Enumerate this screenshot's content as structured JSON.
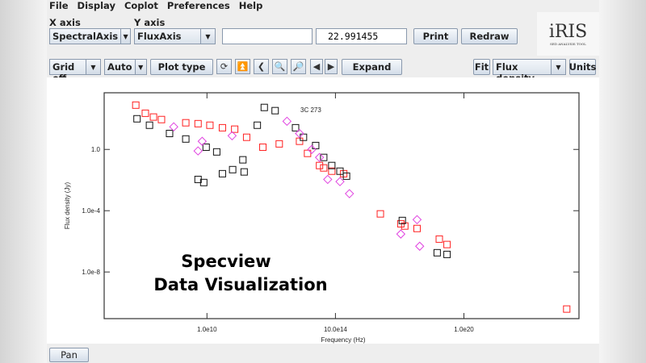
{
  "menu": [
    "File",
    "Display",
    "Coplot",
    "Preferences",
    "Help"
  ],
  "toolbar1": {
    "x_axis_label": "X axis",
    "x_axis_value": "SpectralAxis",
    "y_axis_label": "Y axis",
    "y_axis_value": "FluxAxis",
    "blank_field": "",
    "coord_value": "22.991455",
    "print": "Print",
    "redraw": "Redraw"
  },
  "logo": {
    "text": "iRIS",
    "subtitle": "SED ANALYSIS TOOL"
  },
  "toolbar2": {
    "grid": "Grid off",
    "scale": "Auto",
    "plot_type": "Plot type",
    "expand": "Expand",
    "fit": "Fit",
    "flux_select": "Flux density",
    "units": "Units",
    "icons": [
      "refresh-icon",
      "top-icon",
      "back-icon",
      "zoom-out-icon",
      "zoom-in-icon",
      "left-arrow-icon",
      "right-arrow-icon"
    ]
  },
  "pan": "Pan",
  "caption": {
    "line1": "Specview",
    "line2": "Data Visualization"
  },
  "chart_data": {
    "type": "scatter",
    "xlabel": "Frequency (Hz)",
    "ylabel": "Flux density (Jy)",
    "xscale": "log",
    "yscale": "log",
    "xlim": [
      1000000.0,
      3e+24
    ],
    "ylim": [
      9e-12,
      5000.0
    ],
    "xticks": [
      {
        "v": 10000000000.0,
        "label": "1.0e10"
      },
      {
        "v": 1000000000000000.0,
        "label": "10.0e14"
      },
      {
        "v": 1e+20,
        "label": "1.0e20"
      }
    ],
    "yticks": [
      {
        "v": 1,
        "label": "1.0"
      },
      {
        "v": 0.0001,
        "label": "1.0e-4"
      },
      {
        "v": 1e-08,
        "label": "1.0e-8"
      }
    ],
    "annotation": "3C 273",
    "grid": false,
    "series": [
      {
        "marker": "square",
        "color": "#ff2020",
        "points": [
          [
            17000000.0,
            780
          ],
          [
            40000000.0,
            230
          ],
          [
            83000000.0,
            130
          ],
          [
            170000000.0,
            89
          ],
          [
            1500000000.0,
            55
          ],
          [
            4500000000.0,
            48
          ],
          [
            13000000000.0,
            38
          ],
          [
            40000000000.0,
            26
          ],
          [
            120000000000.0,
            21
          ],
          [
            350000000000.0,
            6.2
          ],
          [
            1500000000000.0,
            1.4
          ],
          [
            6500000000000.0,
            2.3
          ],
          [
            40000000000000.0,
            3.4
          ],
          [
            82000000000000.0,
            0.55
          ],
          [
            240000000000000.0,
            0.089
          ],
          [
            350000000000000.0,
            0.062
          ],
          [
            720000000000000.0,
            0.038
          ],
          [
            2100000000000000.0,
            0.026
          ],
          [
            5.6e+16,
            6.2e-05
          ],
          [
            3.5e+17,
            1.4e-05
          ],
          [
            5e+17,
            1e-05
          ],
          [
            1.5e+18,
            6.9e-06
          ],
          [
            1.1e+19,
            1.4e-06
          ],
          [
            2.2e+19,
            6.2e-07
          ],
          [
            1e+24,
            3.8e-11
          ]
        ]
      },
      {
        "marker": "square",
        "color": "#111111",
        "points": [
          [
            19000000.0,
            100
          ],
          [
            58000000.0,
            38
          ],
          [
            350000000.0,
            11
          ],
          [
            1500000000.0,
            4.8
          ],
          [
            9300000000.0,
            1.4
          ],
          [
            24000000000.0,
            0.69
          ],
          [
            4500000000.0,
            0.011
          ],
          [
            7500000000.0,
            0.0069
          ],
          [
            40000000000.0,
            0.026
          ],
          [
            100000000000.0,
            0.048
          ],
          [
            250000000000.0,
            0.21
          ],
          [
            280000000000.0,
            0.034
          ],
          [
            910000000000.0,
            38
          ],
          [
            1700000000000.0,
            550
          ],
          [
            4500000000000.0,
            340
          ],
          [
            28000000000000.0,
            26
          ],
          [
            57000000000000.0,
            6.2
          ],
          [
            170000000000000.0,
            1.8
          ],
          [
            350000000000000.0,
            0.3
          ],
          [
            720000000000000.0,
            0.089
          ],
          [
            1500000000000000.0,
            0.038
          ],
          [
            2700000000000000.0,
            0.018
          ],
          [
            4e+17,
            2.3e-05
          ],
          [
            9.1e+18,
            1.8e-07
          ],
          [
            2.2e+19,
            1.4e-07
          ]
        ]
      },
      {
        "marker": "diamond",
        "color": "#e040e0",
        "points": [
          [
            510000000.0,
            30
          ],
          [
            4500000000.0,
            0.8
          ],
          [
            6500000000.0,
            3.4
          ],
          [
            95000000000.0,
            7.8
          ],
          [
            13000000000000.0,
            69
          ],
          [
            40000000000000.0,
            11
          ],
          [
            120000000000000.0,
            1
          ],
          [
            240000000000000.0,
            0.3
          ],
          [
            500000000000000.0,
            0.011
          ],
          [
            1500000000000000.0,
            0.0079
          ],
          [
            3500000000000000.0,
            0.0013
          ],
          [
            3.5e+17,
            3e-06
          ],
          [
            1.5e+18,
            2.6e-05
          ],
          [
            1.9e+18,
            4.8e-07
          ]
        ]
      }
    ]
  }
}
